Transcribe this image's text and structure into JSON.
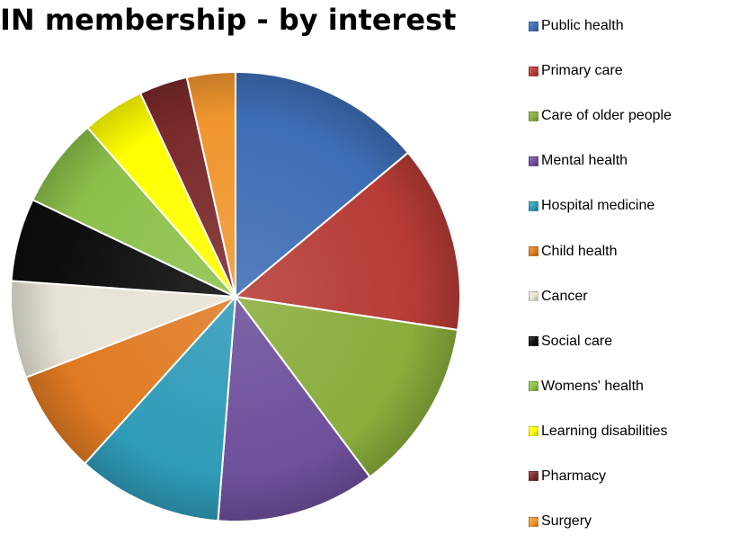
{
  "chart_data": {
    "type": "pie",
    "title": "IN membership - by interest",
    "legend_position": "right",
    "series": [
      {
        "name": "Public health",
        "value": 14.0,
        "color": "#3d6db5"
      },
      {
        "name": "Primary care",
        "value": 13.5,
        "color": "#b63b36"
      },
      {
        "name": "Care of older people",
        "value": 12.5,
        "color": "#8aad3c"
      },
      {
        "name": "Mental health",
        "value": 11.5,
        "color": "#6e4f9b"
      },
      {
        "name": "Hospital medicine",
        "value": 10.5,
        "color": "#2f9bb8"
      },
      {
        "name": "Child health",
        "value": 7.5,
        "color": "#e07a22"
      },
      {
        "name": "Cancer",
        "value": 7.0,
        "color": "#e7e3d6"
      },
      {
        "name": "Social care",
        "value": 6.0,
        "color": "#0d0d0d"
      },
      {
        "name": "Womens' health",
        "value": 6.5,
        "color": "#8cc04a"
      },
      {
        "name": "Learning disabilities",
        "value": 4.5,
        "color": "#ffff00"
      },
      {
        "name": "Pharmacy",
        "value": 3.5,
        "color": "#7a2a2a"
      },
      {
        "name": "Surgery",
        "value": 3.5,
        "color": "#f0962e"
      }
    ]
  }
}
